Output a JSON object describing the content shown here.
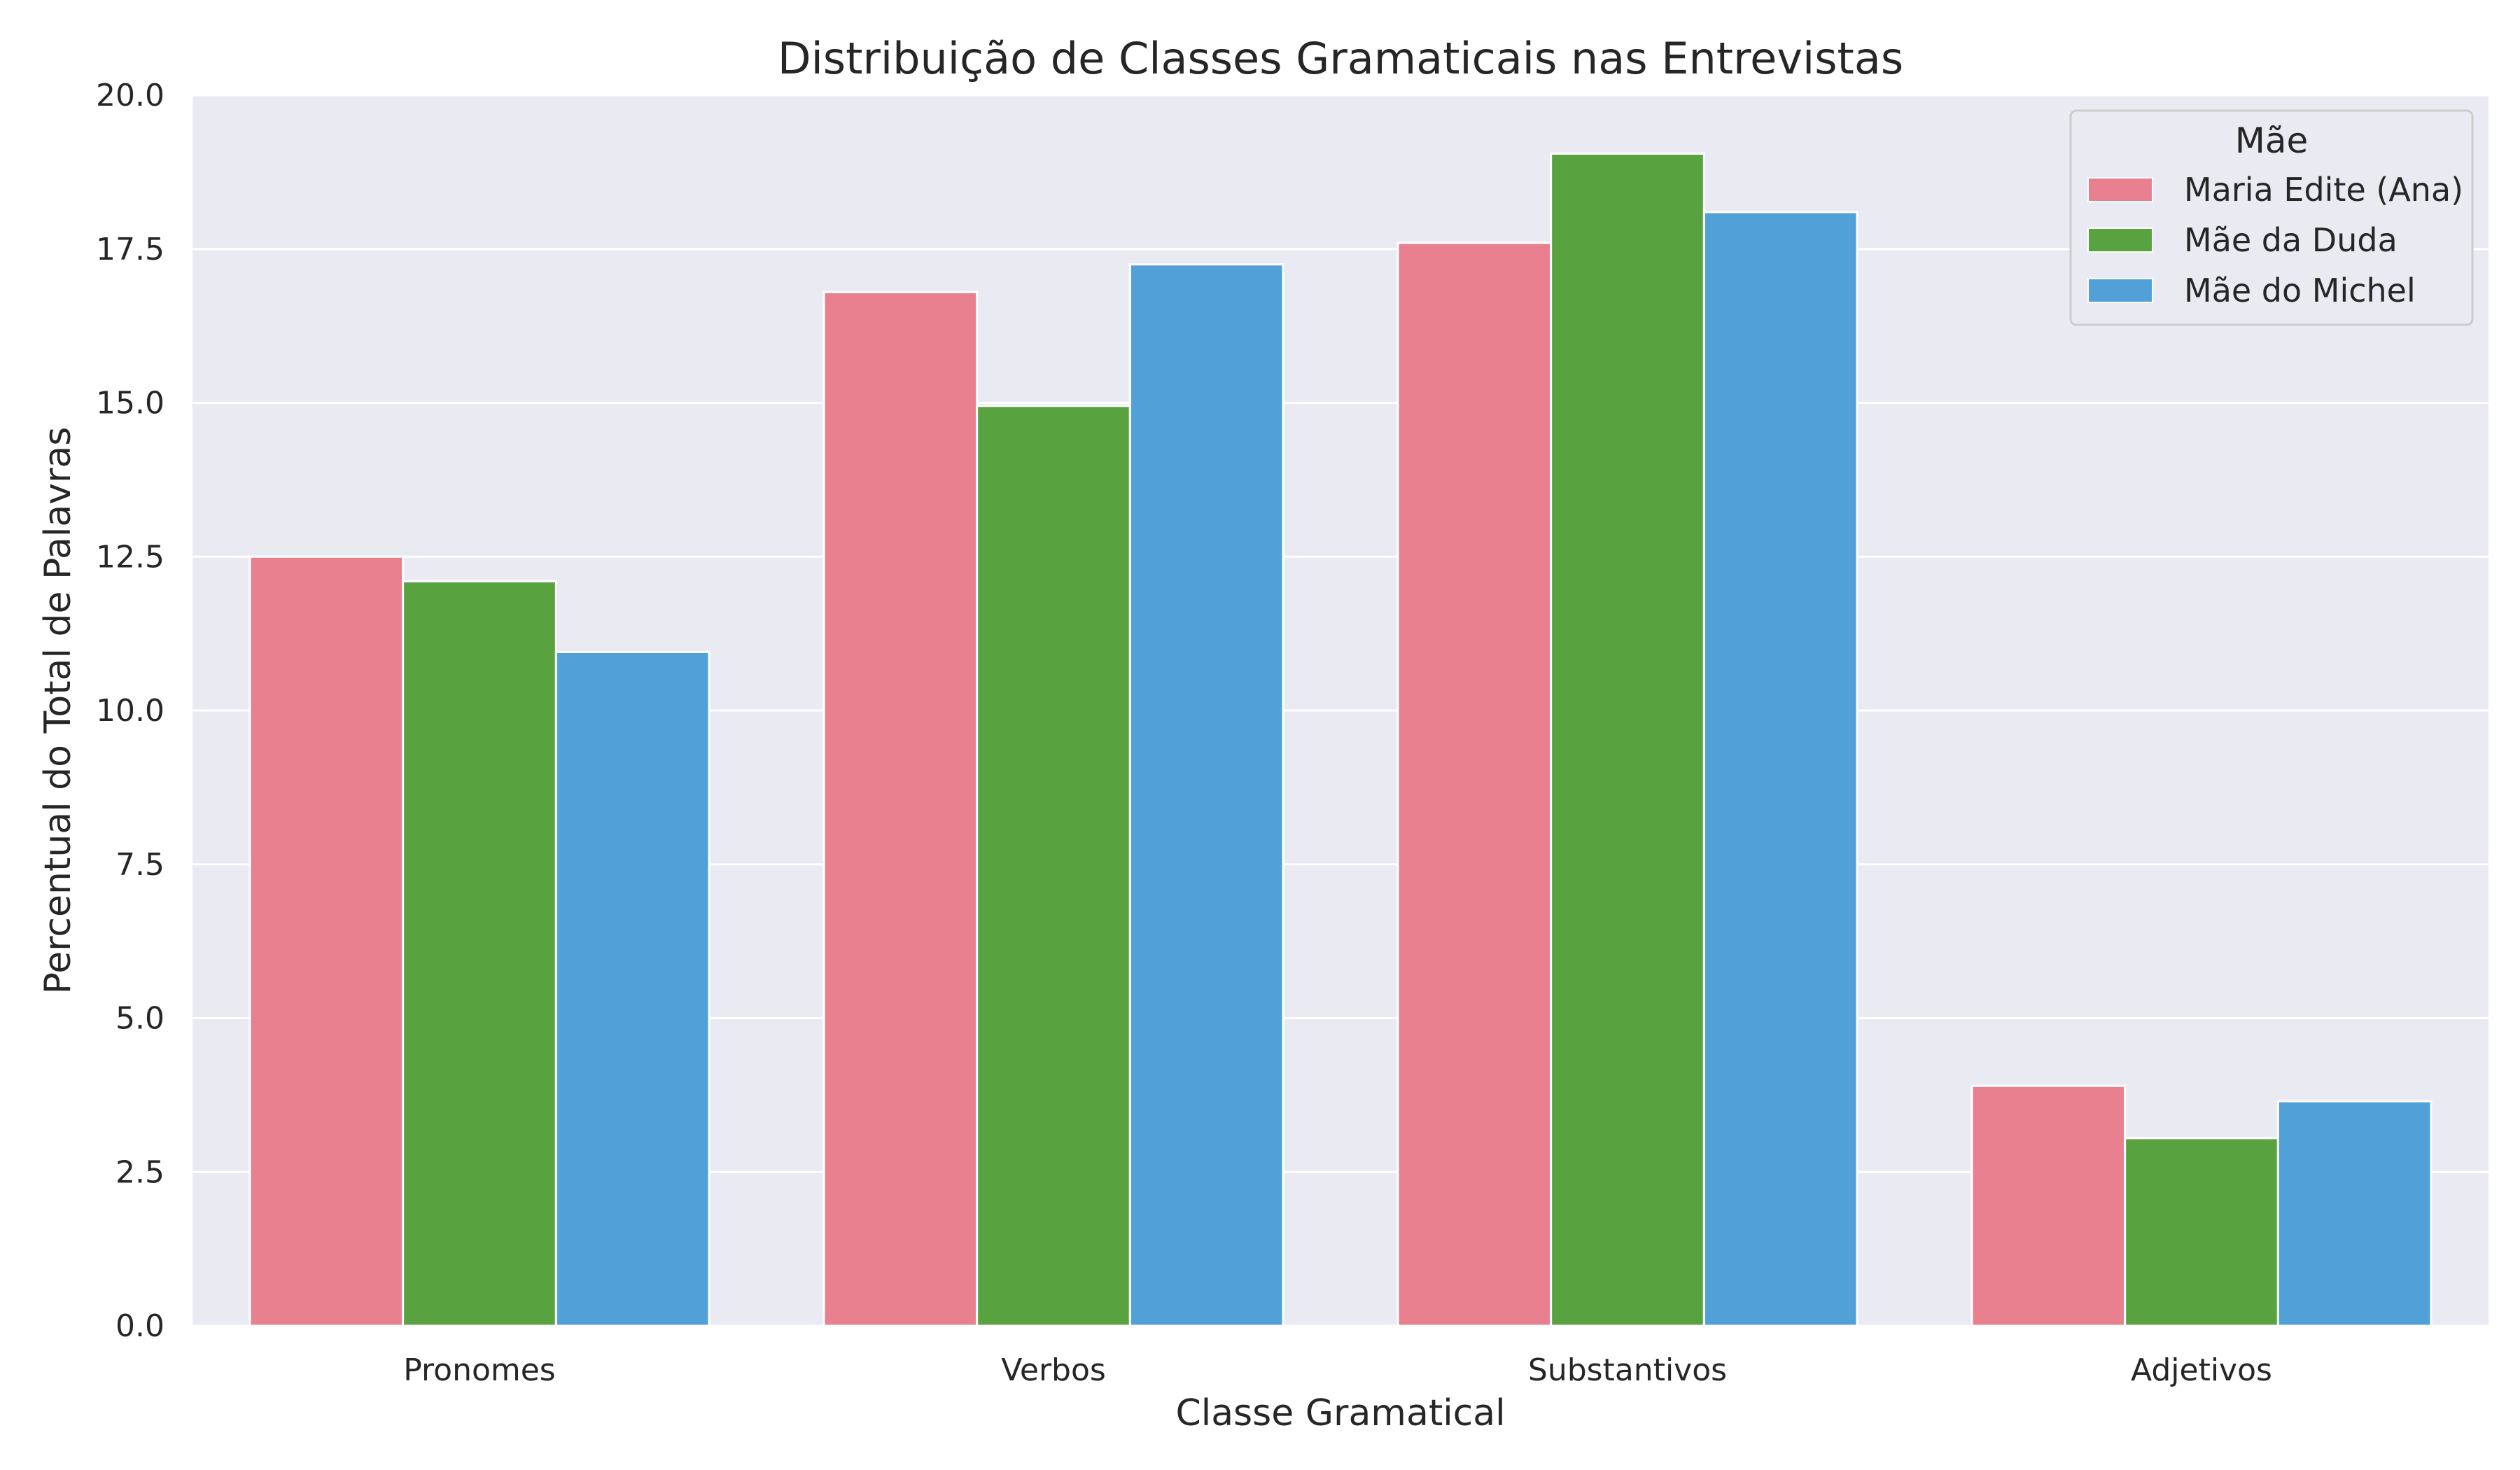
{
  "chart_data": {
    "type": "bar",
    "title": "Distribuição de Classes Gramaticais nas Entrevistas",
    "xlabel": "Classe Gramatical",
    "ylabel": "Percentual do Total de Palavras",
    "categories": [
      "Pronomes",
      "Verbos",
      "Substantivos",
      "Adjetivos"
    ],
    "series": [
      {
        "name": "Maria Edite (Ana)",
        "color": "#e8808f",
        "values": [
          12.5,
          16.8,
          17.6,
          3.9
        ]
      },
      {
        "name": "Mãe da Duda",
        "color": "#58a23f",
        "values": [
          12.1,
          14.95,
          19.05,
          3.05
        ]
      },
      {
        "name": "Mãe do Michel",
        "color": "#52a0d8",
        "values": [
          10.95,
          17.25,
          18.1,
          3.65
        ]
      }
    ],
    "ylim": [
      0,
      20
    ],
    "yticks": [
      "0.0",
      "2.5",
      "5.0",
      "7.5",
      "10.0",
      "12.5",
      "15.0",
      "17.5",
      "20.0"
    ],
    "grid": true,
    "legend": {
      "title": "Mãe",
      "position": "top-right"
    },
    "background": "#eaeaf2"
  }
}
